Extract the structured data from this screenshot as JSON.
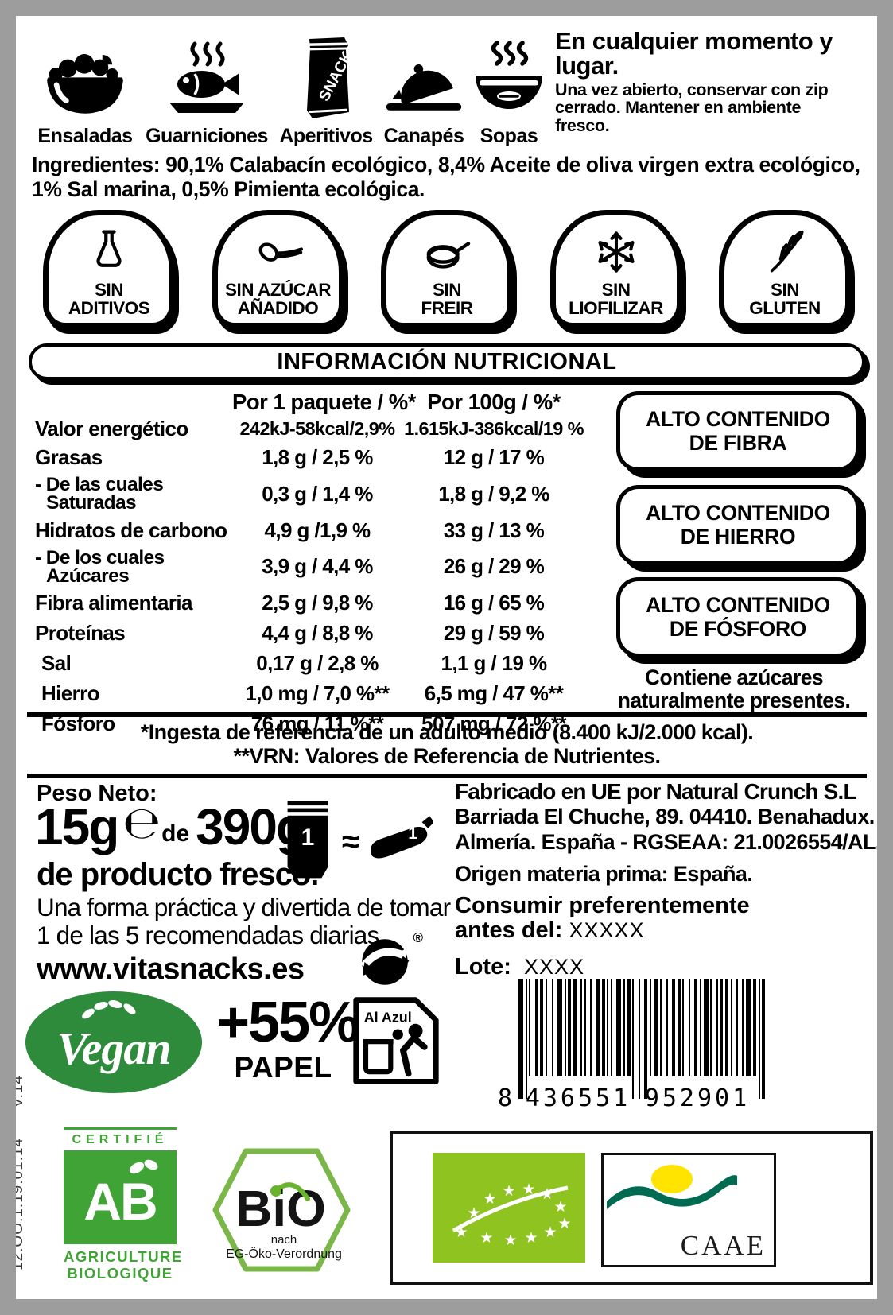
{
  "colors": {
    "frame_gray": "#9d9d9d",
    "ink": "#000000",
    "vegan_green": "#2e8b3c",
    "ab_green": "#3fa435",
    "bio_green": "#7ab648",
    "eu_leaf_green": "#8fc31f",
    "caae_teal": "#006b51",
    "caae_sun": "#ffe400"
  },
  "categories": [
    {
      "icon": "salad-bowl-icon",
      "label": "Ensaladas"
    },
    {
      "icon": "fish-plate-icon",
      "label": "Guarniciones"
    },
    {
      "icon": "snack-bag-icon",
      "label": "Aperitivos",
      "bag_text": "SNACK"
    },
    {
      "icon": "canape-cloche-icon",
      "label": "Canapés"
    },
    {
      "icon": "soup-bowl-icon",
      "label": "Sopas"
    }
  ],
  "storage_note": {
    "title": "En cualquier momento y lugar.",
    "body": "Una vez abierto, conservar con zip cerrado. Mantener en ambiente fresco."
  },
  "ingredients": {
    "label": "Ingredientes:",
    "text": " 90,1% Calabacín ecológico, 8,4% Aceite de oliva virgen extra ecológico, 1% Sal marina, 0,5% Pimienta ecológica."
  },
  "claims": [
    {
      "icon": "flask-icon",
      "line1": "SIN",
      "line2": "ADITIVOS"
    },
    {
      "icon": "spoon-icon",
      "line1": "SIN AZÚCAR",
      "line2": "AÑADIDO"
    },
    {
      "icon": "frying-pan-icon",
      "line1": "SIN",
      "line2": "FREIR"
    },
    {
      "icon": "snowflake-icon",
      "line1": "SIN",
      "line2": "LIOFILIZAR"
    },
    {
      "icon": "wheat-icon",
      "line1": "SIN",
      "line2": "GLUTEN"
    }
  ],
  "nutrition": {
    "title": "INFORMACIÓN NUTRICIONAL",
    "col1_header": "Por 1 paquete / %*",
    "col2_header": "Por 100g / %*",
    "rows": [
      {
        "label": "Valor energético",
        "v1": "242kJ-58kcal/2,9%",
        "v2": "1.615kJ-386kcal/19 %"
      },
      {
        "label": "Grasas",
        "v1": "1,8 g / 2,5 %",
        "v2": "12 g / 17 %"
      },
      {
        "label": "- De las cuales",
        "label2": "Saturadas",
        "v1": "0,3 g / 1,4 %",
        "v2": "1,8 g / 9,2 %"
      },
      {
        "label": "Hidratos de carbono",
        "v1": "4,9 g /1,9 %",
        "v2": "33 g / 13 %"
      },
      {
        "label": "- De los cuales",
        "label2": "Azúcares",
        "v1": "3,9 g / 4,4 %",
        "v2": "26 g / 29 %"
      },
      {
        "label": "Fibra alimentaria",
        "v1": "2,5 g / 9,8 %",
        "v2": "16 g / 65 %"
      },
      {
        "label": "Proteínas",
        "v1": "4,4 g / 8,8 %",
        "v2": "29 g / 59 %"
      },
      {
        "label": "Sal",
        "v1": "0,17 g / 2,8 %",
        "v2": "1,1 g / 19 %"
      },
      {
        "label": "Hierro",
        "v1": "1,0 mg / 7,0 %**",
        "v2": "6,5 mg / 47 %**"
      },
      {
        "label": "Fósforo",
        "v1": "76 mg / 11 %**",
        "v2": "507 mg / 72 %**"
      }
    ],
    "high_content_badges": [
      {
        "line1": "ALTO CONTENIDO",
        "line2": "DE FIBRA"
      },
      {
        "line1": "ALTO CONTENIDO",
        "line2": "DE HIERRO"
      },
      {
        "line1": "ALTO CONTENIDO",
        "line2": "DE FÓSFORO"
      }
    ],
    "natural_sugars_note_1": "Contiene azúcares",
    "natural_sugars_note_2": "naturalmente presentes.",
    "footnote1": "*Ingesta de referencia de un adulto medio (8.400 kJ/2.000 kcal).",
    "footnote2": "**VRN: Valores de Referencia de Nutrientes."
  },
  "net_weight": {
    "label": "Peso Neto:",
    "amount": "15g",
    "estimated_sign": "℮",
    "of": "de",
    "total": "390g",
    "line2": "de producto fresco.",
    "tagline1": "Una forma práctica y divertida de tomar",
    "tagline2": "1 de las 5 recomendadas diarias.",
    "website": "www.vitasnacks.es",
    "bag_count": "1",
    "approx": "≈",
    "veg_count": "1"
  },
  "manufacturer": {
    "line1": "Fabricado en UE por Natural Crunch S.L",
    "line2": "Barriada El Chuche, 89. 04410. Benahadux.",
    "line3": "Almería. España - RGSEAA: 21.0026554/AL.",
    "line4": "Origen materia prima: España.",
    "best_before_1": "Consumir preferentemente",
    "best_before_2": "antes del:",
    "best_before_value": "XXXXX",
    "lot_label": "Lote:",
    "lot_value": "XXXX"
  },
  "logos": {
    "vegan_text": "Vegan",
    "paper_pct": "+55%",
    "paper_word": "PAPEL",
    "green_dot_reg": "®",
    "al_azul_label": "Al Azul",
    "barcode": {
      "d1": "8",
      "d2": "436551",
      "d3": "952901"
    },
    "ab": {
      "cert": "CERTIFIÉ",
      "letters": "AB",
      "sub1": "AGRICULTURE",
      "sub2": "BIOLOGIQUE"
    },
    "bio": {
      "word": "BiO",
      "sub1": "nach",
      "sub2": "EG-Öko-Verordnung"
    },
    "caae": "CAAE"
  },
  "side_code": "12.OO.1.19.01.14      V.14"
}
